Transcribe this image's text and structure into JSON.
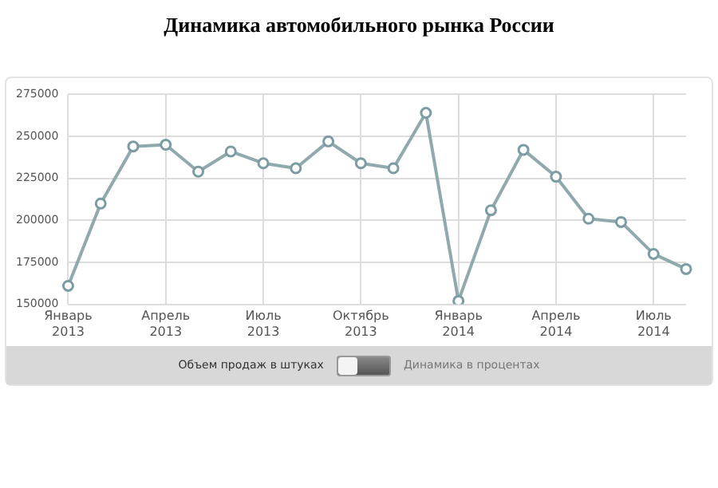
{
  "chart_data": {
    "type": "line",
    "title": "Динамика автомобильного рынка России",
    "categories": [
      "Январь 2013",
      null,
      null,
      "Апрель 2013",
      null,
      null,
      "Июль 2013",
      null,
      null,
      "Октябрь 2013",
      null,
      null,
      "Январь 2014",
      null,
      null,
      "Апрель 2014",
      null,
      null,
      "Июль 2014",
      null
    ],
    "series": [
      {
        "color": "#8fa9ad",
        "values": [
          161000,
          210000,
          244000,
          245000,
          229000,
          241000,
          234000,
          231000,
          247000,
          234000,
          231000,
          264000,
          152000,
          206000,
          242000,
          226000,
          201000,
          199000,
          180000,
          171000
        ]
      }
    ],
    "ylim": [
      150000,
      275000
    ],
    "yticks": [
      150000,
      175000,
      200000,
      225000,
      250000,
      275000
    ],
    "grid": true,
    "marker": "circle",
    "legend": false,
    "annotations": [
      "Объем продаж в штуках",
      "Динамика в процентах"
    ]
  }
}
